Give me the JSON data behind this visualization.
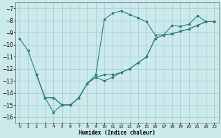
{
  "xlabel": "Humidex (Indice chaleur)",
  "background_color": "#cce9ec",
  "grid_color": "#aacfd4",
  "line_color": "#2d7d74",
  "xlim": [
    -0.5,
    23.5
  ],
  "ylim": [
    -16.5,
    -6.5
  ],
  "yticks": [
    -7,
    -8,
    -9,
    -10,
    -11,
    -12,
    -13,
    -14,
    -15,
    -16
  ],
  "xticks": [
    0,
    1,
    2,
    3,
    4,
    5,
    6,
    7,
    8,
    9,
    10,
    11,
    12,
    13,
    14,
    15,
    16,
    17,
    18,
    19,
    20,
    21,
    22,
    23
  ],
  "series1_x": [
    0,
    1,
    2,
    3,
    4,
    5,
    6,
    7,
    8,
    9,
    10,
    11,
    12,
    13,
    14,
    15,
    16,
    17,
    18,
    19,
    20,
    21,
    22,
    23
  ],
  "series1_y": [
    -9.5,
    -10.5,
    -12.5,
    -14.4,
    -15.6,
    -15.0,
    -15.0,
    -14.4,
    -13.2,
    -12.5,
    -7.9,
    -7.4,
    -7.2,
    -7.5,
    -7.8,
    -8.1,
    -9.2,
    -9.2,
    -8.4,
    -8.5,
    -8.3,
    -7.6,
    -8.1,
    -8.1
  ],
  "series2_x": [
    2,
    3,
    4,
    5,
    6,
    7,
    8,
    9,
    10,
    11,
    12,
    13,
    14,
    15,
    16,
    17,
    18,
    19,
    20,
    21,
    22,
    23
  ],
  "series2_y": [
    -12.5,
    -14.4,
    -14.4,
    -15.0,
    -15.0,
    -14.4,
    -13.2,
    -12.7,
    -12.5,
    -12.5,
    -12.3,
    -12.0,
    -11.5,
    -11.0,
    -9.5,
    -9.2,
    -9.1,
    -8.9,
    -8.7,
    -8.4,
    -8.1,
    -8.1
  ],
  "series3_x": [
    2,
    3,
    4,
    5,
    6,
    7,
    8,
    9,
    10,
    11,
    12,
    13,
    14,
    15,
    16,
    17,
    18,
    19,
    20,
    21,
    22,
    23
  ],
  "series3_y": [
    -12.5,
    -14.4,
    -14.4,
    -15.0,
    -15.0,
    -14.4,
    -13.2,
    -12.7,
    -13.0,
    -12.7,
    -12.3,
    -12.0,
    -11.5,
    -11.0,
    -9.5,
    -9.2,
    -9.1,
    -8.9,
    -8.7,
    -8.4,
    -8.1,
    -8.1
  ]
}
